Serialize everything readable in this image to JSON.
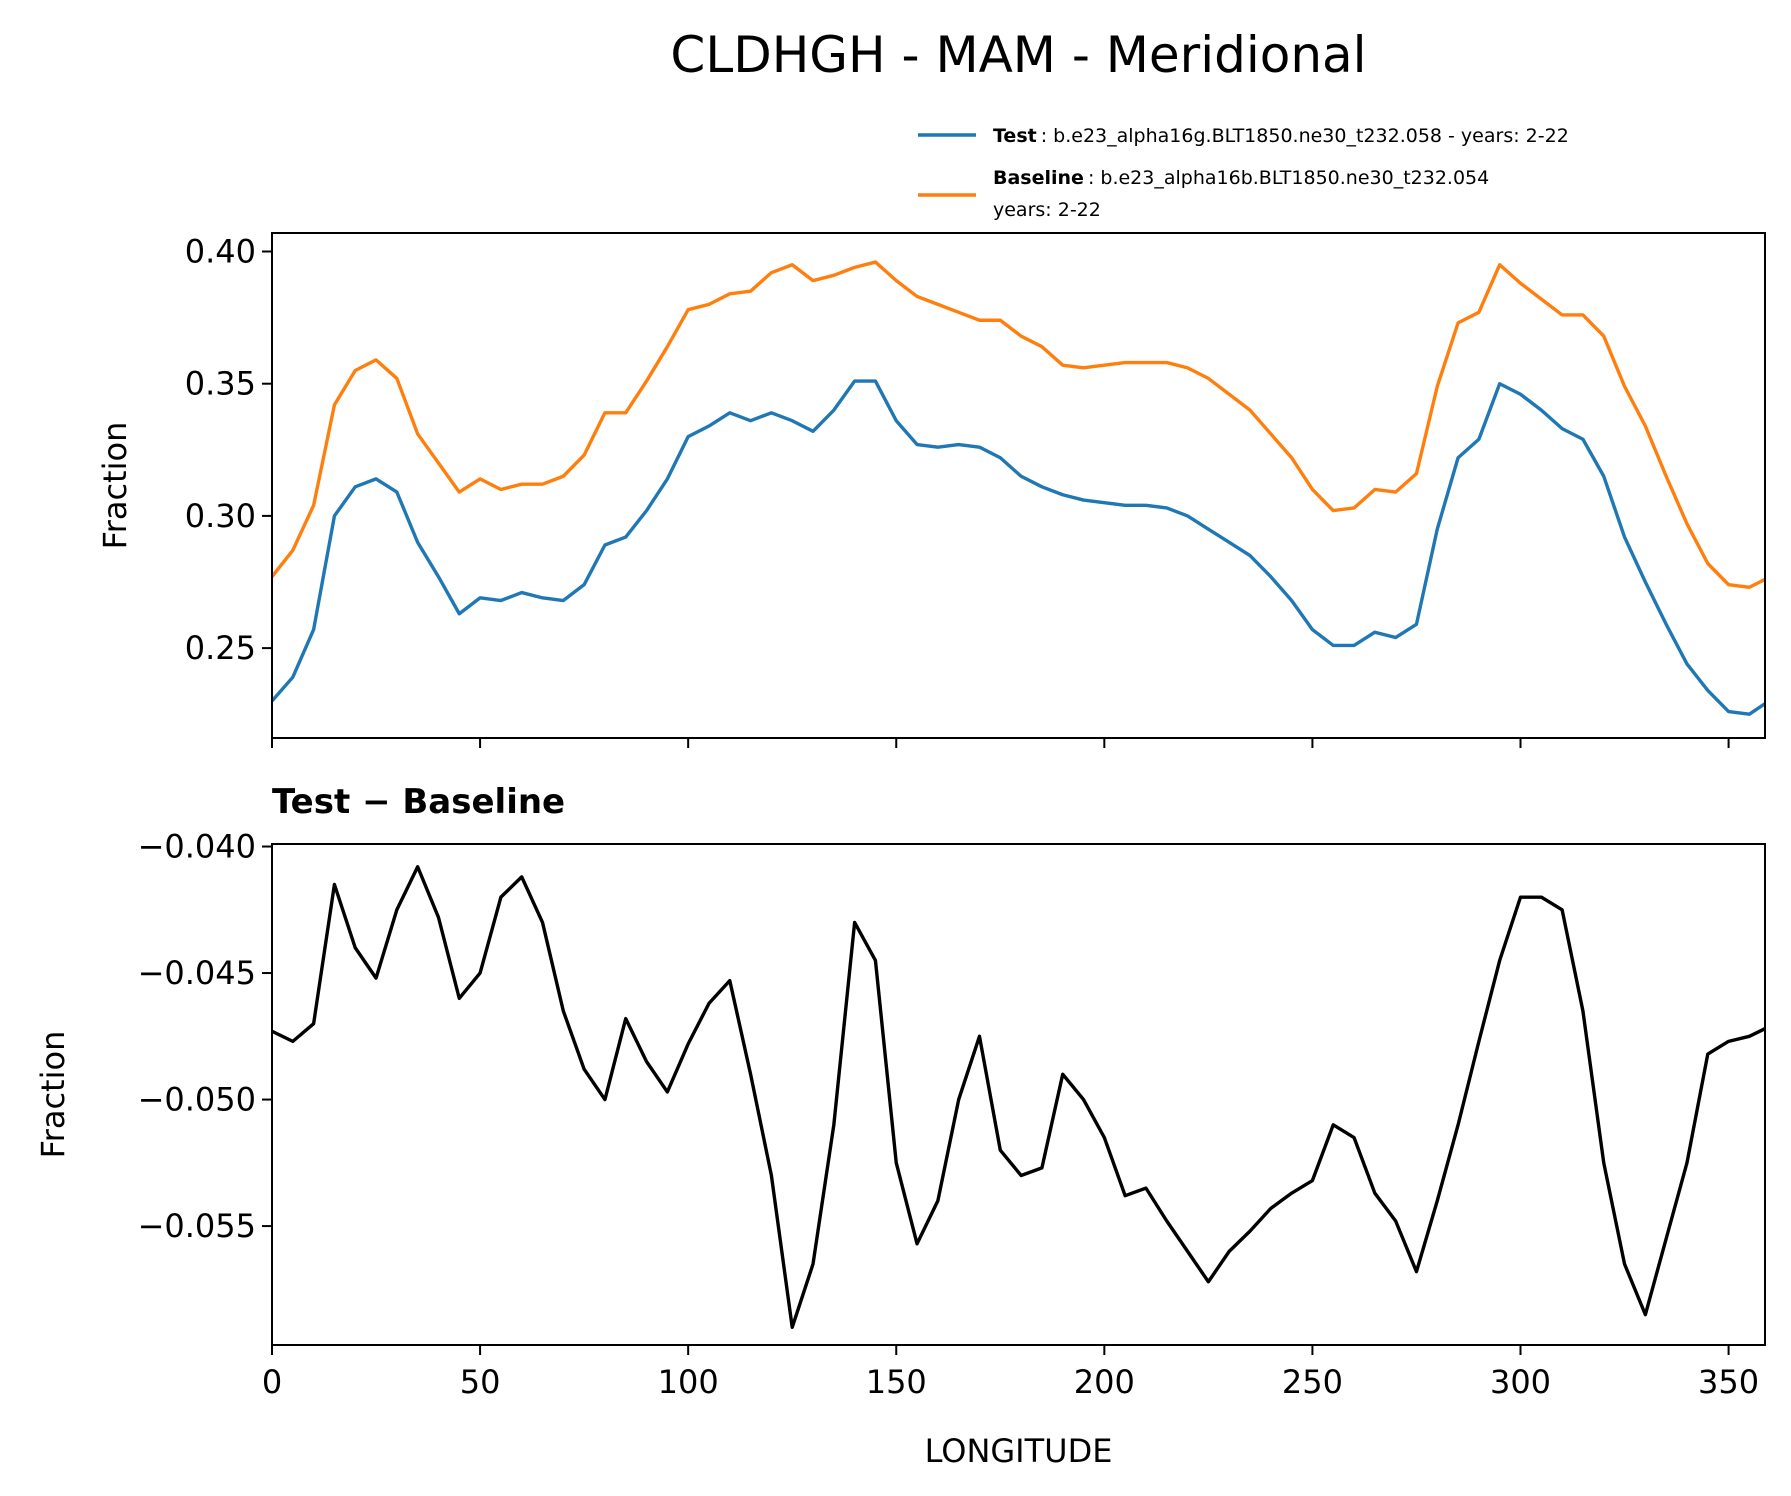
{
  "chart_data": [
    {
      "type": "line",
      "title": "CLDHGH - MAM - Meridional",
      "ylabel": "Fraction",
      "x": [
        0,
        5,
        10,
        15,
        20,
        25,
        30,
        35,
        40,
        45,
        50,
        55,
        60,
        65,
        70,
        75,
        80,
        85,
        90,
        95,
        100,
        105,
        110,
        115,
        120,
        125,
        130,
        135,
        140,
        145,
        150,
        155,
        160,
        165,
        170,
        175,
        180,
        185,
        190,
        195,
        200,
        205,
        210,
        215,
        220,
        225,
        230,
        235,
        240,
        245,
        250,
        255,
        260,
        265,
        270,
        275,
        280,
        285,
        290,
        295,
        300,
        305,
        310,
        315,
        320,
        325,
        330,
        335,
        340,
        345,
        350,
        355,
        358.75
      ],
      "series": [
        {
          "name": "Test",
          "description": ": b.e23_alpha16g.BLT1850.ne30_t232.058 - years: 2-22",
          "color": "#1f77b4",
          "values": [
            0.23,
            0.239,
            0.257,
            0.3,
            0.311,
            0.314,
            0.309,
            0.29,
            0.277,
            0.263,
            0.269,
            0.268,
            0.271,
            0.269,
            0.268,
            0.274,
            0.289,
            0.292,
            0.302,
            0.314,
            0.33,
            0.334,
            0.339,
            0.336,
            0.339,
            0.336,
            0.332,
            0.34,
            0.351,
            0.351,
            0.336,
            0.327,
            0.326,
            0.327,
            0.326,
            0.322,
            0.315,
            0.311,
            0.308,
            0.306,
            0.305,
            0.304,
            0.304,
            0.303,
            0.3,
            0.295,
            0.29,
            0.285,
            0.277,
            0.268,
            0.257,
            0.251,
            0.251,
            0.256,
            0.254,
            0.259,
            0.295,
            0.322,
            0.329,
            0.35,
            0.346,
            0.34,
            0.333,
            0.329,
            0.315,
            0.292,
            0.275,
            0.259,
            0.244,
            0.234,
            0.226,
            0.225,
            0.229
          ]
        },
        {
          "name": "Baseline",
          "description": ": b.e23_alpha16b.BLT1850.ne30_t232.054",
          "description2": "years: 2-22",
          "color": "#ff7f0e",
          "values": [
            0.277,
            0.287,
            0.304,
            0.342,
            0.355,
            0.359,
            0.352,
            0.331,
            0.32,
            0.309,
            0.314,
            0.31,
            0.312,
            0.312,
            0.315,
            0.323,
            0.339,
            0.339,
            0.351,
            0.364,
            0.378,
            0.38,
            0.384,
            0.385,
            0.392,
            0.395,
            0.389,
            0.391,
            0.394,
            0.396,
            0.389,
            0.383,
            0.38,
            0.377,
            0.374,
            0.374,
            0.368,
            0.364,
            0.357,
            0.356,
            0.357,
            0.358,
            0.358,
            0.358,
            0.356,
            0.352,
            0.346,
            0.34,
            0.331,
            0.322,
            0.31,
            0.302,
            0.303,
            0.31,
            0.309,
            0.316,
            0.349,
            0.373,
            0.377,
            0.395,
            0.388,
            0.382,
            0.376,
            0.376,
            0.368,
            0.349,
            0.334,
            0.315,
            0.297,
            0.282,
            0.274,
            0.273,
            0.276
          ]
        }
      ],
      "xlim": [
        0,
        358.75
      ],
      "xticks": [
        0,
        50,
        100,
        150,
        200,
        250,
        300,
        350
      ],
      "ylim": [
        0.216,
        0.407
      ],
      "yticks": [
        0.25,
        {
          "value": 0.3,
          "label": "0.30"
        },
        0.35,
        {
          "value": 0.4,
          "label": "0.40"
        }
      ]
    },
    {
      "type": "line",
      "title": "Test − Baseline",
      "ylabel": "Fraction",
      "xlabel": "LONGITUDE",
      "x": [
        0,
        5,
        10,
        15,
        20,
        25,
        30,
        35,
        40,
        45,
        50,
        55,
        60,
        65,
        70,
        75,
        80,
        85,
        90,
        95,
        100,
        105,
        110,
        115,
        120,
        125,
        130,
        135,
        140,
        145,
        150,
        155,
        160,
        165,
        170,
        175,
        180,
        185,
        190,
        195,
        200,
        205,
        210,
        215,
        220,
        225,
        230,
        235,
        240,
        245,
        250,
        255,
        260,
        265,
        270,
        275,
        280,
        285,
        290,
        295,
        300,
        305,
        310,
        315,
        320,
        325,
        330,
        335,
        340,
        345,
        350,
        355,
        358.75
      ],
      "color": "#000000",
      "values": [
        -0.0473,
        -0.0477,
        -0.047,
        -0.0415,
        -0.044,
        -0.0452,
        -0.0425,
        -0.0408,
        -0.0428,
        -0.046,
        -0.045,
        -0.042,
        -0.0412,
        -0.043,
        -0.0465,
        -0.0488,
        -0.05,
        -0.0468,
        -0.0485,
        -0.0497,
        -0.0478,
        -0.0462,
        -0.0453,
        -0.049,
        -0.053,
        -0.059,
        -0.0565,
        -0.051,
        -0.043,
        -0.0445,
        -0.0525,
        -0.0557,
        -0.054,
        -0.05,
        -0.0475,
        -0.052,
        -0.053,
        -0.0527,
        -0.049,
        -0.05,
        -0.0515,
        -0.0538,
        -0.0535,
        -0.0548,
        -0.056,
        -0.0572,
        -0.056,
        -0.0552,
        -0.0543,
        -0.0537,
        -0.0532,
        -0.051,
        -0.0515,
        -0.0537,
        -0.0548,
        -0.0568,
        -0.054,
        -0.051,
        -0.0477,
        -0.0445,
        -0.042,
        -0.042,
        -0.0425,
        -0.0465,
        -0.0525,
        -0.0565,
        -0.0585,
        -0.0555,
        -0.0525,
        -0.0482,
        -0.0477,
        -0.0475,
        -0.0472
      ],
      "xlim": [
        0,
        358.75
      ],
      "xticks": [
        0,
        50,
        100,
        150,
        200,
        250,
        300,
        350
      ],
      "ylim": [
        -0.0597,
        -0.0399
      ],
      "yticks": [
        {
          "value": -0.04,
          "label": "−0.040"
        },
        {
          "value": -0.045,
          "label": "−0.045"
        },
        {
          "value": -0.05,
          "label": "−0.050"
        },
        {
          "value": -0.055,
          "label": "−0.055"
        }
      ]
    }
  ]
}
